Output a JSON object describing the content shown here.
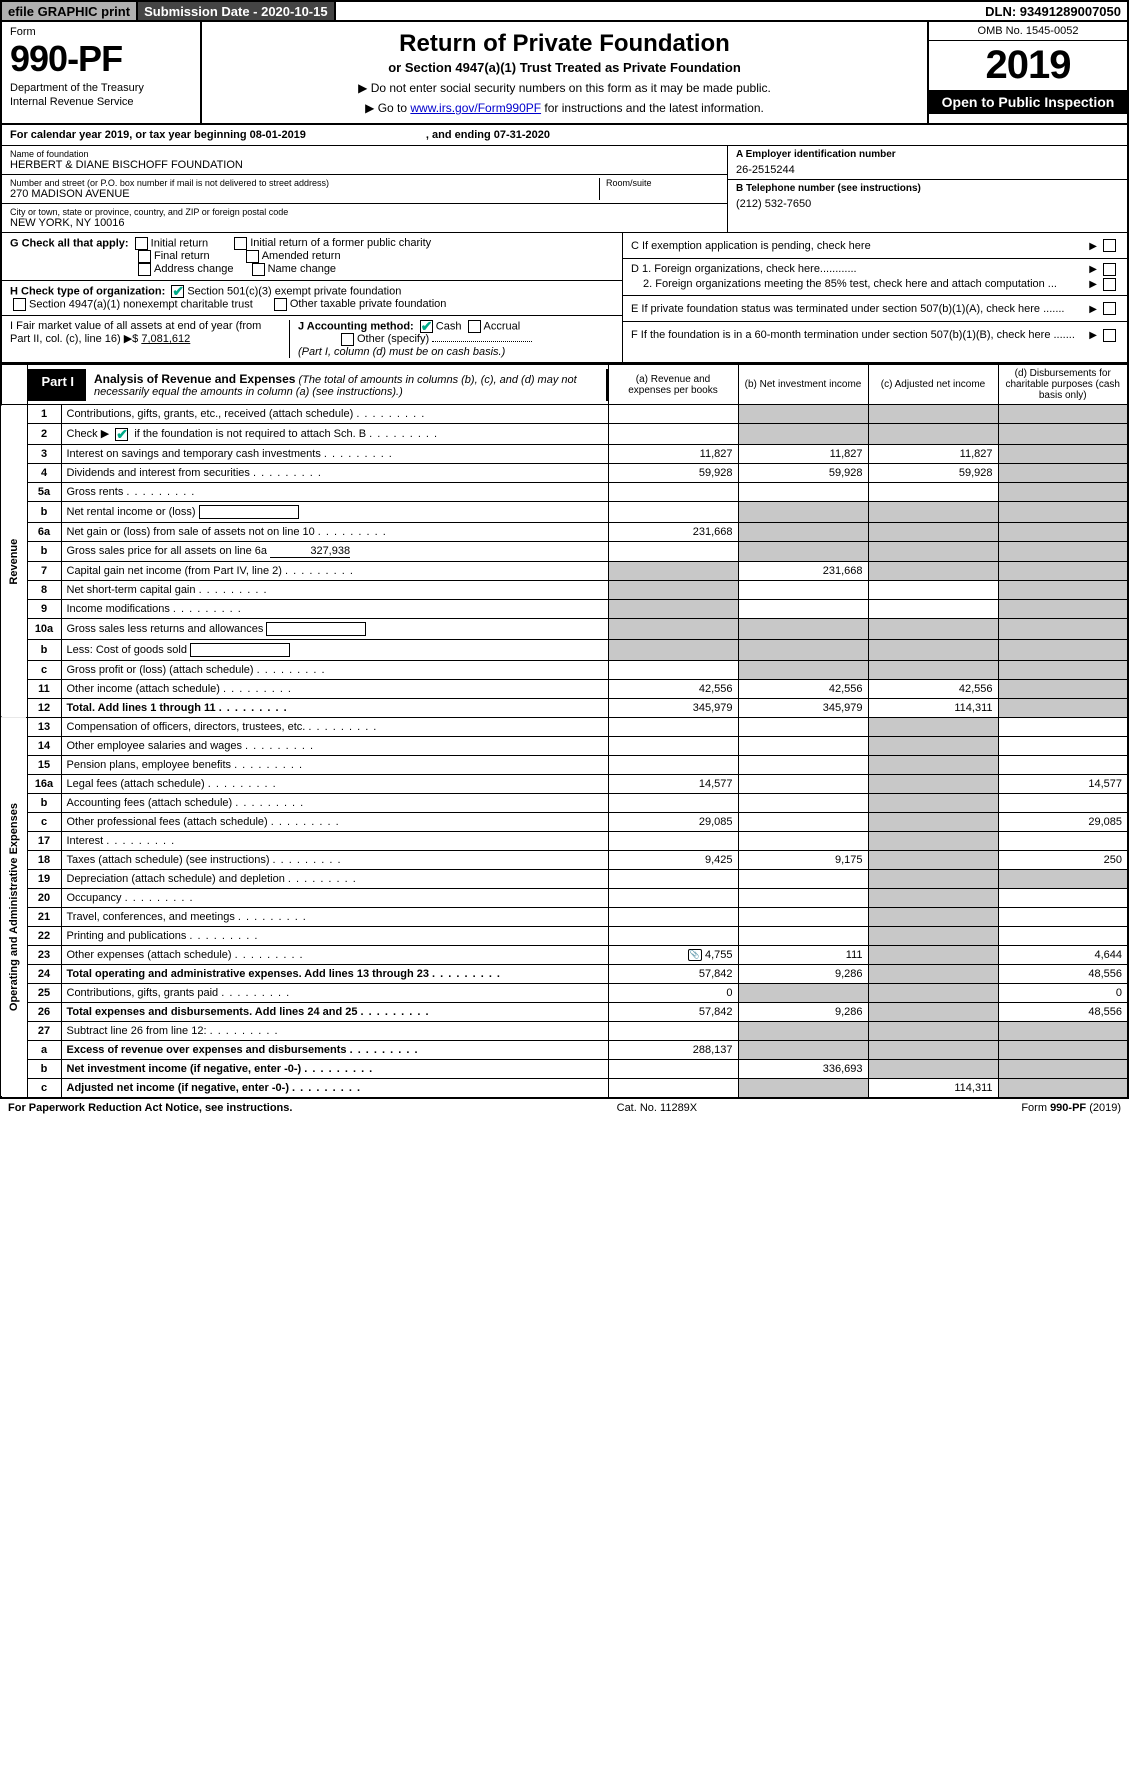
{
  "topbar": {
    "efile": "efile GRAPHIC print",
    "submission": "Submission Date - 2020-10-15",
    "dln": "DLN: 93491289007050"
  },
  "header": {
    "form_label": "Form",
    "form_num": "990-PF",
    "dept1": "Department of the Treasury",
    "dept2": "Internal Revenue Service",
    "title": "Return of Private Foundation",
    "subtitle": "or Section 4947(a)(1) Trust Treated as Private Foundation",
    "note1": "▶ Do not enter social security numbers on this form as it may be made public.",
    "note2_pre": "▶ Go to ",
    "note2_link": "www.irs.gov/Form990PF",
    "note2_post": " for instructions and the latest information.",
    "omb": "OMB No. 1545-0052",
    "year": "2019",
    "open": "Open to Public Inspection"
  },
  "cal": {
    "pre": "For calendar year 2019, or tax year beginning 08-01-2019",
    "end": ", and ending 07-31-2020"
  },
  "info": {
    "name_lbl": "Name of foundation",
    "name": "HERBERT & DIANE BISCHOFF FOUNDATION",
    "addr_lbl": "Number and street (or P.O. box number if mail is not delivered to street address)",
    "addr": "270 MADISON AVENUE",
    "room_lbl": "Room/suite",
    "city_lbl": "City or town, state or province, country, and ZIP or foreign postal code",
    "city": "NEW YORK, NY  10016",
    "a_lbl": "A Employer identification number",
    "a_val": "26-2515244",
    "b_lbl": "B Telephone number (see instructions)",
    "b_val": "(212) 532-7650",
    "c_lbl": "C If exemption application is pending, check here",
    "d1": "D 1. Foreign organizations, check here............",
    "d2": "2. Foreign organizations meeting the 85% test, check here and attach computation ...",
    "e": "E  If private foundation status was terminated under section 507(b)(1)(A), check here .......",
    "f": "F  If the foundation is in a 60-month termination under section 507(b)(1)(B), check here .......",
    "g_lbl": "G Check all that apply:",
    "g_opts": [
      "Initial return",
      "Initial return of a former public charity",
      "Final return",
      "Amended return",
      "Address change",
      "Name change"
    ],
    "h_lbl": "H Check type of organization:",
    "h1": "Section 501(c)(3) exempt private foundation",
    "h2": "Section 4947(a)(1) nonexempt charitable trust",
    "h3": "Other taxable private foundation",
    "i_lbl": "I Fair market value of all assets at end of year (from Part II, col. (c), line 16) ▶$ ",
    "i_val": "7,081,612",
    "j_lbl": "J Accounting method:",
    "j1": "Cash",
    "j2": "Accrual",
    "j3": "Other (specify)",
    "j_note": "(Part I, column (d) must be on cash basis.)"
  },
  "part1": {
    "tab": "Part I",
    "title": "Analysis of Revenue and Expenses",
    "note": "(The total of amounts in columns (b), (c), and (d) may not necessarily equal the amounts in column (a) (see instructions).)",
    "col_a": "(a)   Revenue and expenses per books",
    "col_b": "(b)  Net investment income",
    "col_c": "(c)  Adjusted net income",
    "col_d": "(d)  Disbursements for charitable purposes (cash basis only)",
    "side_rev": "Revenue",
    "side_exp": "Operating and Administrative Expenses"
  },
  "rows": {
    "r1": {
      "n": "1",
      "d": "Contributions, gifts, grants, etc., received (attach schedule)"
    },
    "r2": {
      "n": "2",
      "d": "Check ▶ ",
      "d2": " if the foundation is not required to attach Sch. B",
      "dots": true
    },
    "r3": {
      "n": "3",
      "d": "Interest on savings and temporary cash investments",
      "a": "11,827",
      "b": "11,827",
      "c": "11,827"
    },
    "r4": {
      "n": "4",
      "d": "Dividends and interest from securities",
      "a": "59,928",
      "b": "59,928",
      "c": "59,928"
    },
    "r5a": {
      "n": "5a",
      "d": "Gross rents"
    },
    "r5b": {
      "n": "b",
      "d": "Net rental income or (loss)"
    },
    "r6a": {
      "n": "6a",
      "d": "Net gain or (loss) from sale of assets not on line 10",
      "a": "231,668"
    },
    "r6b": {
      "n": "b",
      "d": "Gross sales price for all assets on line 6a",
      "u": "327,938"
    },
    "r7": {
      "n": "7",
      "d": "Capital gain net income (from Part IV, line 2)",
      "b": "231,668"
    },
    "r8": {
      "n": "8",
      "d": "Net short-term capital gain"
    },
    "r9": {
      "n": "9",
      "d": "Income modifications"
    },
    "r10a": {
      "n": "10a",
      "d": "Gross sales less returns and allowances"
    },
    "r10b": {
      "n": "b",
      "d": "Less: Cost of goods sold"
    },
    "r10c": {
      "n": "c",
      "d": "Gross profit or (loss) (attach schedule)"
    },
    "r11": {
      "n": "11",
      "d": "Other income (attach schedule)",
      "a": "42,556",
      "b": "42,556",
      "c": "42,556"
    },
    "r12": {
      "n": "12",
      "d": "Total. Add lines 1 through 11",
      "a": "345,979",
      "b": "345,979",
      "c": "114,311",
      "bold": true
    },
    "r13": {
      "n": "13",
      "d": "Compensation of officers, directors, trustees, etc."
    },
    "r14": {
      "n": "14",
      "d": "Other employee salaries and wages"
    },
    "r15": {
      "n": "15",
      "d": "Pension plans, employee benefits"
    },
    "r16a": {
      "n": "16a",
      "d": "Legal fees (attach schedule)",
      "a": "14,577",
      "dd": "14,577"
    },
    "r16b": {
      "n": "b",
      "d": "Accounting fees (attach schedule)"
    },
    "r16c": {
      "n": "c",
      "d": "Other professional fees (attach schedule)",
      "a": "29,085",
      "dd": "29,085"
    },
    "r17": {
      "n": "17",
      "d": "Interest"
    },
    "r18": {
      "n": "18",
      "d": "Taxes (attach schedule) (see instructions)",
      "a": "9,425",
      "b": "9,175",
      "dd": "250"
    },
    "r19": {
      "n": "19",
      "d": "Depreciation (attach schedule) and depletion"
    },
    "r20": {
      "n": "20",
      "d": "Occupancy"
    },
    "r21": {
      "n": "21",
      "d": "Travel, conferences, and meetings"
    },
    "r22": {
      "n": "22",
      "d": "Printing and publications"
    },
    "r23": {
      "n": "23",
      "d": "Other expenses (attach schedule)",
      "a": "4,755",
      "b": "111",
      "dd": "4,644",
      "icon": true
    },
    "r24": {
      "n": "24",
      "d": "Total operating and administrative expenses. Add lines 13 through 23",
      "a": "57,842",
      "b": "9,286",
      "dd": "48,556",
      "bold": true
    },
    "r25": {
      "n": "25",
      "d": "Contributions, gifts, grants paid",
      "a": "0",
      "dd": "0"
    },
    "r26": {
      "n": "26",
      "d": "Total expenses and disbursements. Add lines 24 and 25",
      "a": "57,842",
      "b": "9,286",
      "dd": "48,556",
      "bold": true
    },
    "r27": {
      "n": "27",
      "d": "Subtract line 26 from line 12:"
    },
    "r27a": {
      "n": "a",
      "d": "Excess of revenue over expenses and disbursements",
      "a": "288,137",
      "bold": true
    },
    "r27b": {
      "n": "b",
      "d": "Net investment income (if negative, enter -0-)",
      "b": "336,693",
      "bold": true
    },
    "r27c": {
      "n": "c",
      "d": "Adjusted net income (if negative, enter -0-)",
      "c": "114,311",
      "bold": true
    }
  },
  "footer": {
    "left": "For Paperwork Reduction Act Notice, see instructions.",
    "mid": "Cat. No. 11289X",
    "right": "Form 990-PF (2019)"
  }
}
